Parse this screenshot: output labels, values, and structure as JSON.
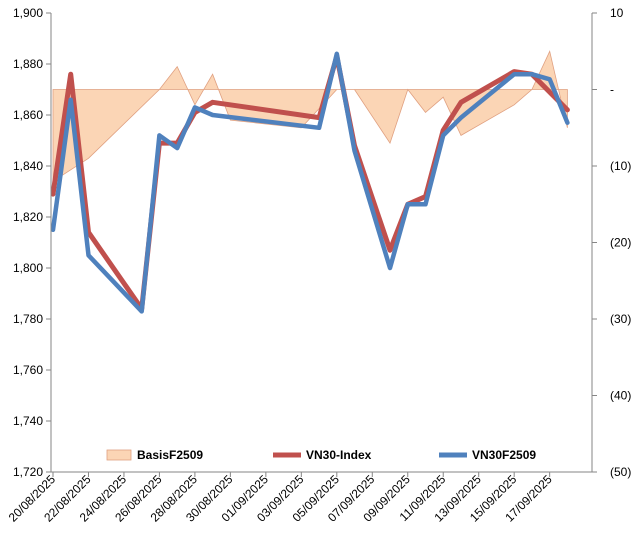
{
  "chart_data": {
    "type": "line",
    "x": [
      "20/08/2025",
      "21/08/2025",
      "22/08/2025",
      "25/08/2025",
      "26/08/2025",
      "27/08/2025",
      "28/08/2025",
      "29/08/2025",
      "04/09/2025",
      "05/09/2025",
      "08/09/2025",
      "09/09/2025",
      "10/09/2025",
      "11/09/2025",
      "12/09/2025",
      "15/09/2025",
      "16/09/2025",
      "17/09/2025",
      "18/09/2025"
    ],
    "x_tick_labels": [
      "20/08/2025",
      "22/08/2025",
      "24/08/2025",
      "26/08/2025",
      "28/08/2025",
      "30/08/2025",
      "01/09/2025",
      "03/09/2025",
      "05/09/2025",
      "07/09/2025",
      "09/09/2025",
      "11/09/2025",
      "13/09/2025",
      "15/09/2025",
      "17/09/2025"
    ],
    "y_left": {
      "range": [
        1720,
        1900
      ],
      "ticks": [
        "1,720",
        "1,740",
        "1,760",
        "1,780",
        "1,800",
        "1,820",
        "1,840",
        "1,860",
        "1,880",
        "1,900"
      ]
    },
    "y_right": {
      "range": [
        -50,
        10
      ],
      "ticks": [
        "(50)",
        "(40)",
        "(30)",
        "(20)",
        "(10)",
        "-",
        "10"
      ]
    },
    "series": [
      {
        "name": "BasisF2509",
        "type": "area",
        "axis": "right",
        "color": "#fbd5b5",
        "points": [
          [
            "20/08/2025",
            -12
          ],
          [
            "22/08/2025",
            -9
          ],
          [
            "26/08/2025",
            0
          ],
          [
            "27/08/2025",
            3
          ],
          [
            "28/08/2025",
            -2
          ],
          [
            "29/08/2025",
            2
          ],
          [
            "30/08/2025",
            -4
          ],
          [
            "03/09/2025",
            -5
          ],
          [
            "05/09/2025",
            0
          ],
          [
            "06/09/2025",
            0
          ],
          [
            "08/09/2025",
            -7
          ],
          [
            "09/09/2025",
            0
          ],
          [
            "10/09/2025",
            -3
          ],
          [
            "11/09/2025",
            -1
          ],
          [
            "12/09/2025",
            -6
          ],
          [
            "15/09/2025",
            -2
          ],
          [
            "16/09/2025",
            0
          ],
          [
            "17/09/2025",
            5
          ],
          [
            "18/09/2025",
            -5
          ]
        ]
      },
      {
        "name": "VN30-Index",
        "type": "line",
        "axis": "left",
        "color": "#c0504d",
        "points": [
          [
            "20/08/2025",
            1829
          ],
          [
            "21/08/2025",
            1876
          ],
          [
            "22/08/2025",
            1814
          ],
          [
            "25/08/2025",
            1784
          ],
          [
            "26/08/2025",
            1849
          ],
          [
            "27/08/2025",
            1849
          ],
          [
            "28/08/2025",
            1861
          ],
          [
            "29/08/2025",
            1865
          ],
          [
            "04/09/2025",
            1859
          ],
          [
            "05/09/2025",
            1883
          ],
          [
            "06/09/2025",
            1848
          ],
          [
            "08/09/2025",
            1807
          ],
          [
            "09/09/2025",
            1825
          ],
          [
            "10/09/2025",
            1828
          ],
          [
            "11/09/2025",
            1854
          ],
          [
            "12/09/2025",
            1865
          ],
          [
            "15/09/2025",
            1877
          ],
          [
            "16/09/2025",
            1876
          ],
          [
            "18/09/2025",
            1862
          ]
        ]
      },
      {
        "name": "VN30F2509",
        "type": "line",
        "axis": "left",
        "color": "#4f81bd",
        "points": [
          [
            "20/08/2025",
            1815
          ],
          [
            "21/08/2025",
            1866
          ],
          [
            "22/08/2025",
            1805
          ],
          [
            "25/08/2025",
            1783
          ],
          [
            "26/08/2025",
            1852
          ],
          [
            "27/08/2025",
            1847
          ],
          [
            "28/08/2025",
            1863
          ],
          [
            "29/08/2025",
            1860
          ],
          [
            "04/09/2025",
            1855
          ],
          [
            "05/09/2025",
            1884
          ],
          [
            "06/09/2025",
            1846
          ],
          [
            "08/09/2025",
            1800
          ],
          [
            "09/09/2025",
            1825
          ],
          [
            "10/09/2025",
            1825
          ],
          [
            "11/09/2025",
            1852
          ],
          [
            "12/09/2025",
            1859
          ],
          [
            "15/09/2025",
            1876
          ],
          [
            "16/09/2025",
            1876
          ],
          [
            "17/09/2025",
            1874
          ],
          [
            "18/09/2025",
            1857
          ]
        ]
      }
    ],
    "legend": {
      "placement": "bottom",
      "entries": [
        "BasisF2509",
        "VN30-Index",
        "VN30F2509"
      ]
    },
    "grid": false
  }
}
